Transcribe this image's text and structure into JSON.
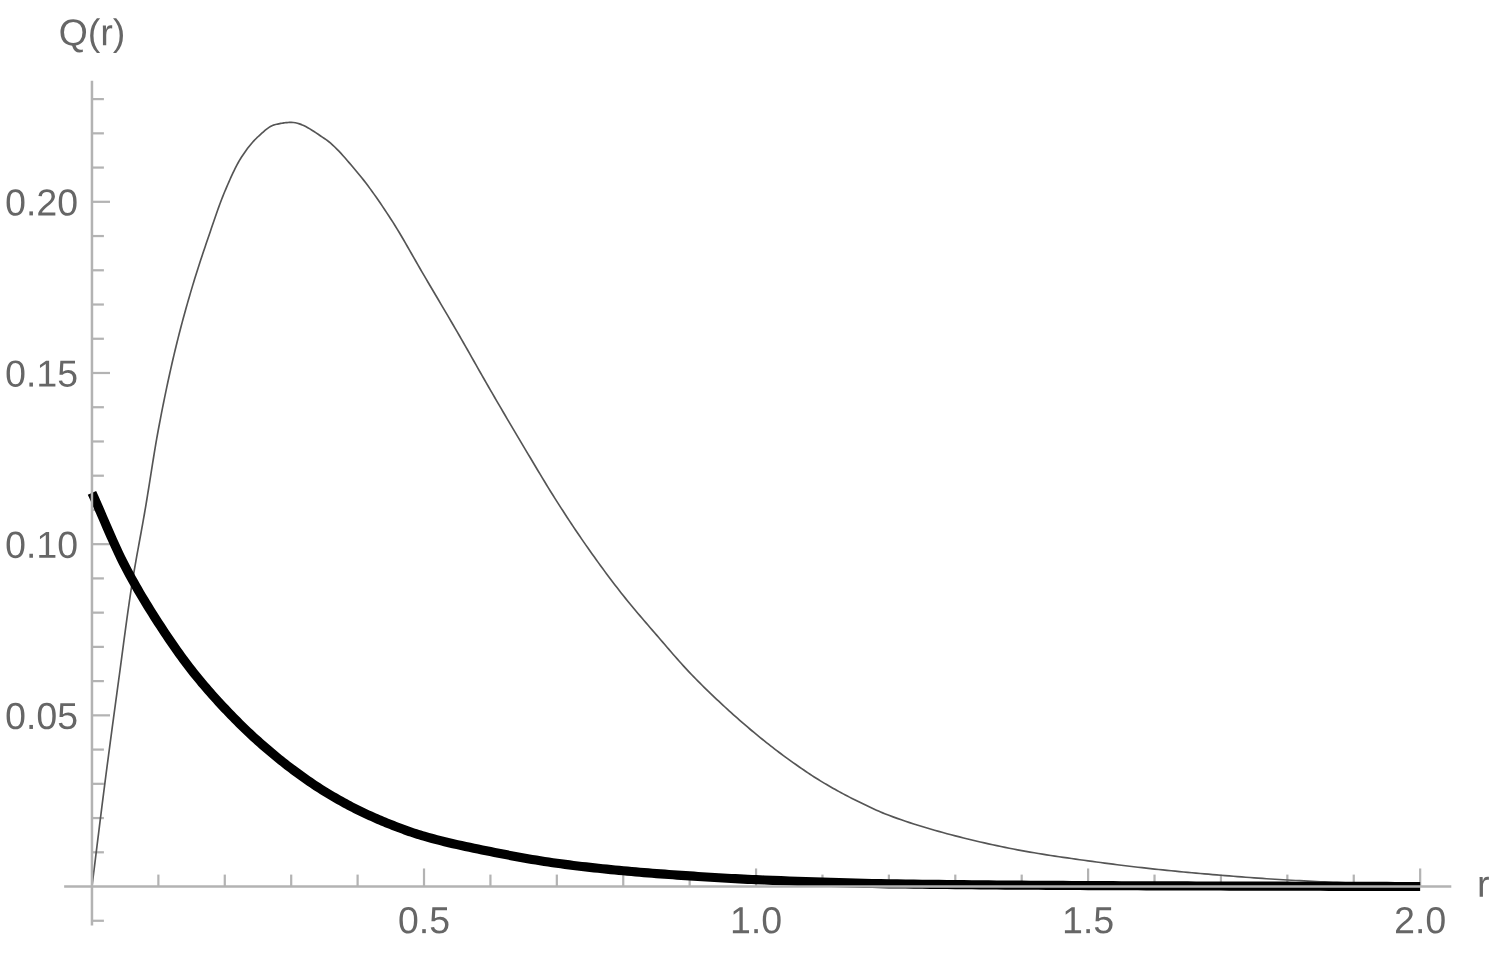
{
  "chart_data": {
    "type": "line",
    "xlabel": "r",
    "ylabel": "Q(r)",
    "line_style": "solid",
    "xlim": [
      -0.04,
      2.045
    ],
    "ylim": [
      -0.011,
      0.235
    ],
    "xticks": [
      {
        "value": 0.1,
        "label": null
      },
      {
        "value": 0.2,
        "label": null
      },
      {
        "value": 0.3,
        "label": null
      },
      {
        "value": 0.4,
        "label": null
      },
      0.5,
      {
        "value": 0.6,
        "label": null
      },
      {
        "value": 0.7,
        "label": null
      },
      {
        "value": 0.8,
        "label": null
      },
      {
        "value": 0.9,
        "label": null
      },
      {
        "value": 1,
        "label": "1.0"
      },
      {
        "value": 1.1,
        "label": null
      },
      {
        "value": 1.2,
        "label": null
      },
      {
        "value": 1.3,
        "label": null
      },
      {
        "value": 1.4,
        "label": null
      },
      1.5,
      {
        "value": 1.6,
        "label": null
      },
      {
        "value": 1.7,
        "label": null
      },
      {
        "value": 1.8,
        "label": null
      },
      {
        "value": 1.9,
        "label": null
      },
      {
        "value": 2,
        "label": "2.0"
      }
    ],
    "yticks": [
      {
        "value": -0.01,
        "label": null
      },
      {
        "value": 0.01,
        "label": null
      },
      {
        "value": 0.02,
        "label": null
      },
      {
        "value": 0.03,
        "label": null
      },
      {
        "value": 0.04,
        "label": null
      },
      0.05,
      {
        "value": 0.06,
        "label": null
      },
      {
        "value": 0.07,
        "label": null
      },
      {
        "value": 0.08,
        "label": null
      },
      {
        "value": 0.09,
        "label": null
      },
      {
        "value": 0.1,
        "label": "0.10"
      },
      {
        "value": 0.11,
        "label": null
      },
      {
        "value": 0.12,
        "label": null
      },
      {
        "value": 0.13,
        "label": null
      },
      {
        "value": 0.14,
        "label": null
      },
      0.15,
      {
        "value": 0.16,
        "label": null
      },
      {
        "value": 0.17,
        "label": null
      },
      {
        "value": 0.18,
        "label": null
      },
      {
        "value": 0.19,
        "label": null
      },
      {
        "value": 0.2,
        "label": "0.20"
      },
      {
        "value": 0.21,
        "label": null
      },
      {
        "value": 0.22,
        "label": null
      },
      {
        "value": 0.23,
        "label": null
      }
    ],
    "series": [
      {
        "color": "#555555",
        "x": [
          0,
          0.02,
          0.04,
          0.06,
          0.08,
          0.1,
          0.125,
          0.15,
          0.175,
          0.2,
          0.225,
          0.25,
          0.275,
          0.3,
          0.35,
          0.4,
          0.45,
          0.5,
          0.55,
          0.6,
          0.65,
          0.7,
          0.75,
          0.8,
          0.85,
          0.9,
          0.95,
          1.0,
          1.05,
          1.1,
          1.15,
          1.2,
          1.3,
          1.4,
          1.5,
          1.6,
          1.7,
          1.8,
          1.9,
          2.0
        ],
        "values": [
          0,
          0.031,
          0.06,
          0.088,
          0.11,
          0.1335,
          0.1565,
          0.1745,
          0.1895,
          0.203,
          0.213,
          0.219,
          0.2225,
          0.2232,
          0.2185,
          0.2085,
          0.195,
          0.1785,
          0.162,
          0.145,
          0.1285,
          0.1125,
          0.098,
          0.085,
          0.0735,
          0.0625,
          0.053,
          0.0445,
          0.037,
          0.0305,
          0.0252,
          0.0208,
          0.0148,
          0.0105,
          0.0075,
          0.0051,
          0.0033,
          0.0019,
          0.001,
          0.0004
        ]
      },
      {
        "color": "#000000",
        "x": [
          0,
          0.05,
          0.1,
          0.15,
          0.2,
          0.25,
          0.3,
          0.35,
          0.4,
          0.45,
          0.5,
          0.6,
          0.7,
          0.8,
          0.9,
          1.0,
          1.2,
          1.4,
          1.6,
          1.8,
          2.0
        ],
        "values": [
          0.115,
          0.0935,
          0.077,
          0.0632,
          0.052,
          0.0425,
          0.0345,
          0.0278,
          0.0224,
          0.0181,
          0.0147,
          0.0102,
          0.0068,
          0.0046,
          0.0031,
          0.002,
          0.0008,
          0.0004,
          0.0002,
          0.0001,
          0
        ]
      }
    ]
  }
}
